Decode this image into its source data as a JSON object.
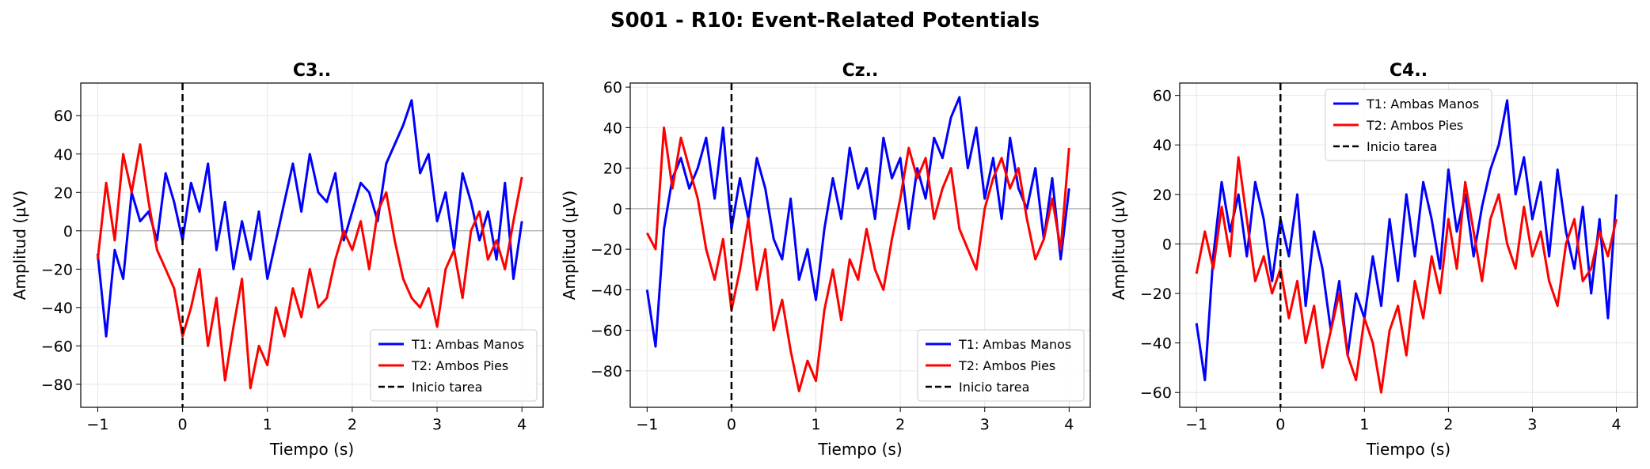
{
  "suptitle": "S001 - R10: Event-Related Potentials",
  "colors": {
    "T1": "#0000ff",
    "T2": "#ff0000",
    "onset": "#000000",
    "grid": "#e6e6e6",
    "zero": "#bbbbbb"
  },
  "chart_data": [
    {
      "type": "line",
      "title": "C3..",
      "xlabel": "Tiempo (s)",
      "ylabel": "Amplitud (µV)",
      "xlim": [
        -1.2,
        4.25
      ],
      "ylim": [
        -92,
        77
      ],
      "xticks": [
        -1,
        0,
        1,
        2,
        3,
        4
      ],
      "yticks": [
        -80,
        -60,
        -40,
        -20,
        0,
        20,
        40,
        60
      ],
      "grid": true,
      "legend_loc": "lower-right",
      "onset": {
        "x": 0,
        "label": "Inicio tarea"
      },
      "series": [
        {
          "name": "T1: Ambas Manos",
          "color": "#0000ff",
          "x": [
            -1,
            -0.9,
            -0.8,
            -0.7,
            -0.6,
            -0.5,
            -0.4,
            -0.3,
            -0.2,
            -0.1,
            0,
            0.1,
            0.2,
            0.3,
            0.4,
            0.5,
            0.6,
            0.7,
            0.8,
            0.9,
            1,
            1.1,
            1.2,
            1.3,
            1.4,
            1.5,
            1.6,
            1.7,
            1.8,
            1.9,
            2,
            2.1,
            2.2,
            2.3,
            2.4,
            2.5,
            2.6,
            2.7,
            2.8,
            2.9,
            3,
            3.1,
            3.2,
            3.3,
            3.4,
            3.5,
            3.6,
            3.7,
            3.8,
            3.9,
            4
          ],
          "y": [
            -12,
            -55,
            -10,
            -25,
            20,
            5,
            10,
            -5,
            30,
            15,
            -5,
            25,
            10,
            35,
            -10,
            15,
            -20,
            5,
            -15,
            10,
            -25,
            -5,
            15,
            35,
            10,
            40,
            20,
            15,
            30,
            -5,
            10,
            25,
            20,
            5,
            35,
            45,
            55,
            68,
            30,
            40,
            5,
            20,
            -10,
            30,
            15,
            -5,
            10,
            -15,
            25,
            -25,
            5
          ]
        },
        {
          "name": "T2: Ambos Pies",
          "color": "#ff0000",
          "x": [
            -1,
            -0.9,
            -0.8,
            -0.7,
            -0.6,
            -0.5,
            -0.4,
            -0.3,
            -0.2,
            -0.1,
            0,
            0.1,
            0.2,
            0.3,
            0.4,
            0.5,
            0.6,
            0.7,
            0.8,
            0.9,
            1,
            1.1,
            1.2,
            1.3,
            1.4,
            1.5,
            1.6,
            1.7,
            1.8,
            1.9,
            2,
            2.1,
            2.2,
            2.3,
            2.4,
            2.5,
            2.6,
            2.7,
            2.8,
            2.9,
            3,
            3.1,
            3.2,
            3.3,
            3.4,
            3.5,
            3.6,
            3.7,
            3.8,
            3.9,
            4
          ],
          "y": [
            -15,
            25,
            -5,
            40,
            20,
            45,
            15,
            -10,
            -20,
            -30,
            -55,
            -40,
            -20,
            -60,
            -35,
            -78,
            -50,
            -25,
            -82,
            -60,
            -70,
            -40,
            -55,
            -30,
            -45,
            -20,
            -40,
            -35,
            -15,
            0,
            -10,
            5,
            -20,
            10,
            20,
            -5,
            -25,
            -35,
            -40,
            -30,
            -50,
            -20,
            -10,
            -35,
            0,
            10,
            -15,
            -5,
            -20,
            5,
            28
          ]
        }
      ]
    },
    {
      "type": "line",
      "title": "Cz..",
      "xlabel": "Tiempo (s)",
      "ylabel": "Amplitud (µV)",
      "xlim": [
        -1.2,
        4.25
      ],
      "ylim": [
        -98,
        62
      ],
      "xticks": [
        -1,
        0,
        1,
        2,
        3,
        4
      ],
      "yticks": [
        -80,
        -60,
        -40,
        -20,
        0,
        20,
        40,
        60
      ],
      "grid": true,
      "legend_loc": "lower-right",
      "onset": {
        "x": 0,
        "label": "Inicio tarea"
      },
      "series": [
        {
          "name": "T1: Ambas Manos",
          "color": "#0000ff",
          "x": [
            -1,
            -0.9,
            -0.8,
            -0.7,
            -0.6,
            -0.5,
            -0.4,
            -0.3,
            -0.2,
            -0.1,
            0,
            0.1,
            0.2,
            0.3,
            0.4,
            0.5,
            0.6,
            0.7,
            0.8,
            0.9,
            1,
            1.1,
            1.2,
            1.3,
            1.4,
            1.5,
            1.6,
            1.7,
            1.8,
            1.9,
            2,
            2.1,
            2.2,
            2.3,
            2.4,
            2.5,
            2.6,
            2.7,
            2.8,
            2.9,
            3,
            3.1,
            3.2,
            3.3,
            3.4,
            3.5,
            3.6,
            3.7,
            3.8,
            3.9,
            4
          ],
          "y": [
            -40,
            -68,
            -10,
            15,
            25,
            10,
            20,
            35,
            5,
            40,
            -10,
            15,
            -5,
            25,
            10,
            -15,
            -25,
            5,
            -35,
            -20,
            -45,
            -10,
            15,
            -5,
            30,
            10,
            20,
            -5,
            35,
            15,
            25,
            -10,
            20,
            5,
            35,
            25,
            45,
            55,
            20,
            40,
            5,
            25,
            -5,
            35,
            10,
            0,
            20,
            -15,
            15,
            -25,
            10
          ]
        },
        {
          "name": "T2: Ambos Pies",
          "color": "#ff0000",
          "x": [
            -1,
            -0.9,
            -0.8,
            -0.7,
            -0.6,
            -0.5,
            -0.4,
            -0.3,
            -0.2,
            -0.1,
            0,
            0.1,
            0.2,
            0.3,
            0.4,
            0.5,
            0.6,
            0.7,
            0.8,
            0.9,
            1,
            1.1,
            1.2,
            1.3,
            1.4,
            1.5,
            1.6,
            1.7,
            1.8,
            1.9,
            2,
            2.1,
            2.2,
            2.3,
            2.4,
            2.5,
            2.6,
            2.7,
            2.8,
            2.9,
            3,
            3.1,
            3.2,
            3.3,
            3.4,
            3.5,
            3.6,
            3.7,
            3.8,
            3.9,
            4
          ],
          "y": [
            -12,
            -20,
            40,
            10,
            35,
            20,
            5,
            -20,
            -35,
            -15,
            -50,
            -30,
            -5,
            -40,
            -20,
            -60,
            -45,
            -70,
            -90,
            -75,
            -85,
            -50,
            -30,
            -55,
            -25,
            -35,
            -10,
            -30,
            -40,
            -15,
            5,
            30,
            15,
            25,
            -5,
            10,
            20,
            -10,
            -20,
            -30,
            0,
            15,
            25,
            10,
            20,
            -5,
            -25,
            -15,
            5,
            -20,
            30
          ]
        }
      ]
    },
    {
      "type": "line",
      "title": "C4..",
      "xlabel": "Tiempo (s)",
      "ylabel": "Amplitud (µV)",
      "xlim": [
        -1.2,
        4.25
      ],
      "ylim": [
        -66,
        65
      ],
      "xticks": [
        -1,
        0,
        1,
        2,
        3,
        4
      ],
      "yticks": [
        -60,
        -40,
        -20,
        0,
        20,
        40,
        60
      ],
      "grid": true,
      "legend_loc": "upper-center",
      "onset": {
        "x": 0,
        "label": "Inicio tarea"
      },
      "series": [
        {
          "name": "T1: Ambas Manos",
          "color": "#0000ff",
          "x": [
            -1,
            -0.9,
            -0.8,
            -0.7,
            -0.6,
            -0.5,
            -0.4,
            -0.3,
            -0.2,
            -0.1,
            0,
            0.1,
            0.2,
            0.3,
            0.4,
            0.5,
            0.6,
            0.7,
            0.8,
            0.9,
            1,
            1.1,
            1.2,
            1.3,
            1.4,
            1.5,
            1.6,
            1.7,
            1.8,
            1.9,
            2,
            2.1,
            2.2,
            2.3,
            2.4,
            2.5,
            2.6,
            2.7,
            2.8,
            2.9,
            3,
            3.1,
            3.2,
            3.3,
            3.4,
            3.5,
            3.6,
            3.7,
            3.8,
            3.9,
            4
          ],
          "y": [
            -32,
            -55,
            -5,
            25,
            5,
            20,
            -5,
            25,
            10,
            -15,
            10,
            -5,
            20,
            -25,
            5,
            -10,
            -35,
            -15,
            -45,
            -20,
            -30,
            -5,
            -25,
            10,
            -15,
            20,
            -5,
            25,
            10,
            -10,
            30,
            5,
            20,
            -5,
            15,
            30,
            40,
            58,
            20,
            35,
            10,
            25,
            -5,
            30,
            5,
            -10,
            15,
            -20,
            10,
            -30,
            20
          ]
        },
        {
          "name": "T2: Ambos Pies",
          "color": "#ff0000",
          "x": [
            -1,
            -0.9,
            -0.8,
            -0.7,
            -0.6,
            -0.5,
            -0.4,
            -0.3,
            -0.2,
            -0.1,
            0,
            0.1,
            0.2,
            0.3,
            0.4,
            0.5,
            0.6,
            0.7,
            0.8,
            0.9,
            1,
            1.1,
            1.2,
            1.3,
            1.4,
            1.5,
            1.6,
            1.7,
            1.8,
            1.9,
            2,
            2.1,
            2.2,
            2.3,
            2.4,
            2.5,
            2.6,
            2.7,
            2.8,
            2.9,
            3,
            3.1,
            3.2,
            3.3,
            3.4,
            3.5,
            3.6,
            3.7,
            3.8,
            3.9,
            4
          ],
          "y": [
            -12,
            5,
            -10,
            15,
            -5,
            35,
            10,
            -15,
            -5,
            -20,
            -10,
            -30,
            -15,
            -40,
            -25,
            -50,
            -35,
            -20,
            -45,
            -55,
            -30,
            -40,
            -60,
            -35,
            -25,
            -45,
            -15,
            -30,
            -5,
            -20,
            10,
            -10,
            25,
            5,
            -15,
            10,
            20,
            0,
            -10,
            15,
            -5,
            5,
            -15,
            -25,
            0,
            10,
            -15,
            -10,
            5,
            -5,
            10
          ]
        }
      ]
    }
  ]
}
